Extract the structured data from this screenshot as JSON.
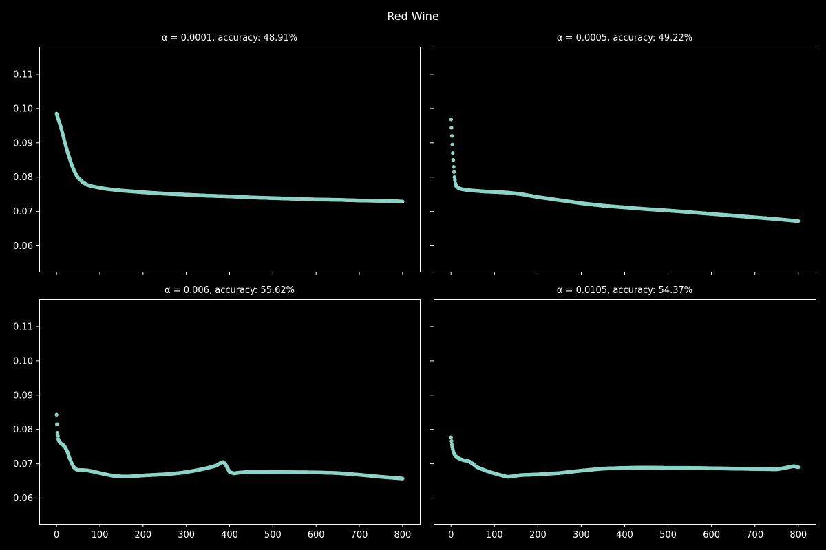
{
  "figure": {
    "title": "Red Wine",
    "background": "#000000",
    "foreground": "#ffffff"
  },
  "chart_data": [
    {
      "type": "scatter",
      "title": "α = 0.0001, accuracy: 48.91%",
      "xlabel": "",
      "ylabel": "",
      "xlim": [
        -40,
        840
      ],
      "ylim": [
        0.0525,
        0.118
      ],
      "xticks": [
        0,
        100,
        200,
        300,
        400,
        500,
        600,
        700,
        800
      ],
      "yticks": [
        0.06,
        0.07,
        0.08,
        0.09,
        0.1,
        0.11
      ],
      "color": "#8dd3c7",
      "series": [
        {
          "x": [
            0,
            5,
            10,
            15,
            20,
            25,
            30,
            35,
            40,
            45,
            50,
            60,
            70,
            80,
            100,
            120,
            150,
            200,
            250,
            300,
            350,
            400,
            450,
            500,
            550,
            600,
            650,
            700,
            750,
            800
          ],
          "y": [
            0.0985,
            0.0965,
            0.0945,
            0.0922,
            0.0898,
            0.0875,
            0.0855,
            0.0836,
            0.0821,
            0.0808,
            0.0798,
            0.0786,
            0.0778,
            0.0774,
            0.0769,
            0.0765,
            0.0761,
            0.0756,
            0.0752,
            0.0749,
            0.0746,
            0.0744,
            0.0741,
            0.0739,
            0.0737,
            0.0735,
            0.0734,
            0.0732,
            0.0731,
            0.0729
          ]
        }
      ]
    },
    {
      "type": "scatter",
      "title": "α = 0.0005, accuracy: 49.22%",
      "xlabel": "",
      "ylabel": "",
      "xlim": [
        -40,
        840
      ],
      "ylim": [
        0.0525,
        0.118
      ],
      "xticks": [
        0,
        100,
        200,
        300,
        400,
        500,
        600,
        700,
        800
      ],
      "yticks": [
        0.06,
        0.07,
        0.08,
        0.09,
        0.1,
        0.11
      ],
      "color": "#8dd3c7",
      "series": [
        {
          "x": [
            0,
            2,
            4,
            6,
            8,
            10,
            12,
            15,
            20,
            25,
            30,
            40,
            60,
            80,
            100,
            130,
            160,
            200,
            250,
            300,
            350,
            400,
            450,
            500,
            550,
            600,
            650,
            700,
            750,
            800
          ],
          "y": [
            0.0968,
            0.092,
            0.087,
            0.083,
            0.08,
            0.0782,
            0.0774,
            0.077,
            0.0767,
            0.0765,
            0.0764,
            0.0762,
            0.076,
            0.0758,
            0.0757,
            0.0755,
            0.0751,
            0.0742,
            0.0733,
            0.0724,
            0.0717,
            0.0712,
            0.0707,
            0.0703,
            0.0698,
            0.0693,
            0.0688,
            0.0683,
            0.0678,
            0.0672
          ]
        }
      ]
    },
    {
      "type": "scatter",
      "title": "α = 0.006, accuracy: 55.62%",
      "xlabel": "",
      "ylabel": "",
      "xlim": [
        -40,
        840
      ],
      "ylim": [
        0.0525,
        0.118
      ],
      "xticks": [
        0,
        100,
        200,
        300,
        400,
        500,
        600,
        700,
        800
      ],
      "yticks": [
        0.06,
        0.07,
        0.08,
        0.09,
        0.1,
        0.11
      ],
      "color": "#8dd3c7",
      "series": [
        {
          "x": [
            0,
            1,
            2,
            4,
            6,
            8,
            10,
            15,
            20,
            25,
            30,
            35,
            40,
            45,
            50,
            70,
            90,
            110,
            130,
            150,
            170,
            200,
            230,
            260,
            290,
            320,
            350,
            370,
            380,
            385,
            390,
            395,
            400,
            410,
            420,
            440,
            500,
            600,
            650,
            700,
            750,
            800
          ],
          "y": [
            0.0843,
            0.0815,
            0.079,
            0.0772,
            0.0765,
            0.0762,
            0.0759,
            0.0755,
            0.0748,
            0.0735,
            0.0717,
            0.0702,
            0.069,
            0.0684,
            0.0682,
            0.0681,
            0.0676,
            0.067,
            0.0665,
            0.0663,
            0.0663,
            0.0666,
            0.0668,
            0.067,
            0.0674,
            0.068,
            0.0688,
            0.0695,
            0.0703,
            0.0705,
            0.07,
            0.0688,
            0.0676,
            0.0672,
            0.0674,
            0.0676,
            0.0676,
            0.0675,
            0.0673,
            0.0668,
            0.0662,
            0.0657
          ]
        }
      ]
    },
    {
      "type": "scatter",
      "title": "α = 0.0105, accuracy: 54.37%",
      "xlabel": "",
      "ylabel": "",
      "xlim": [
        -40,
        840
      ],
      "ylim": [
        0.0525,
        0.118
      ],
      "xticks": [
        0,
        100,
        200,
        300,
        400,
        500,
        600,
        700,
        800
      ],
      "yticks": [
        0.06,
        0.07,
        0.08,
        0.09,
        0.1,
        0.11
      ],
      "color": "#8dd3c7",
      "series": [
        {
          "x": [
            0,
            2,
            4,
            6,
            8,
            10,
            15,
            20,
            30,
            40,
            50,
            60,
            80,
            100,
            120,
            130,
            140,
            160,
            200,
            250,
            300,
            350,
            400,
            450,
            500,
            550,
            600,
            650,
            700,
            750,
            770,
            780,
            790,
            800
          ],
          "y": [
            0.0777,
            0.0755,
            0.0742,
            0.0733,
            0.0727,
            0.0723,
            0.0718,
            0.0714,
            0.071,
            0.0708,
            0.07,
            0.069,
            0.068,
            0.0672,
            0.0665,
            0.0662,
            0.0663,
            0.0667,
            0.0669,
            0.0673,
            0.068,
            0.0686,
            0.0688,
            0.0689,
            0.0688,
            0.0688,
            0.0687,
            0.0686,
            0.0685,
            0.0684,
            0.0688,
            0.0691,
            0.0693,
            0.069
          ]
        }
      ]
    }
  ]
}
